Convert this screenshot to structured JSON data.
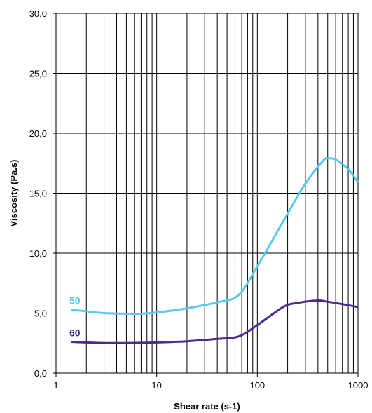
{
  "chart_data": {
    "type": "line",
    "title": "",
    "xlabel": "Shear rate (s-1)",
    "ylabel": "Viscosity  (Pa.s)",
    "x_scale": "log",
    "xlim": [
      1,
      1000
    ],
    "ylim": [
      0,
      30
    ],
    "grid": true,
    "legend": "none",
    "x_ticks": [
      1,
      10,
      100,
      1000
    ],
    "x_tick_labels": [
      "1",
      "10",
      "100",
      "1000"
    ],
    "y_ticks": [
      0,
      5,
      10,
      15,
      20,
      25,
      30
    ],
    "y_tick_labels": [
      "0,0",
      "5,0",
      "10,0",
      "15,0",
      "20,0",
      "25,0",
      "30,0"
    ],
    "series": [
      {
        "name": "50",
        "color": "#5bc8f0",
        "x": [
          1.4,
          2,
          3,
          5,
          7,
          10,
          20,
          40,
          65,
          100,
          200,
          300,
          450,
          500,
          600,
          800,
          1000
        ],
        "y": [
          5.3,
          5.15,
          5.0,
          4.95,
          4.95,
          5.05,
          5.4,
          5.9,
          6.5,
          8.9,
          13.3,
          15.8,
          17.7,
          17.9,
          17.8,
          17.0,
          15.9
        ]
      },
      {
        "name": "60",
        "color": "#4b2c8c",
        "x": [
          1.4,
          2,
          3,
          5,
          10,
          20,
          40,
          65,
          100,
          180,
          250,
          400,
          500,
          700,
          1000
        ],
        "y": [
          2.6,
          2.55,
          2.5,
          2.5,
          2.55,
          2.65,
          2.85,
          3.05,
          4.0,
          5.5,
          5.85,
          6.05,
          5.95,
          5.75,
          5.5
        ]
      }
    ]
  }
}
